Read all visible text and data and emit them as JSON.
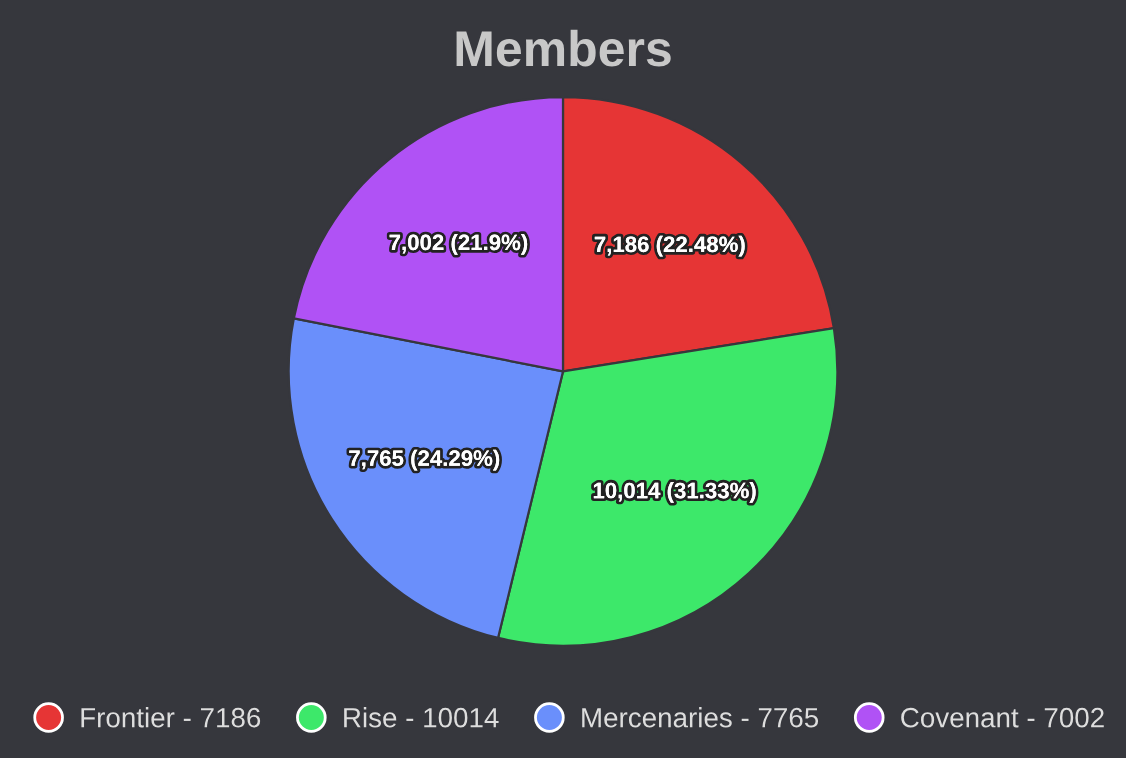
{
  "chart_data": {
    "type": "pie",
    "title": "Members",
    "categories": [
      "Frontier - 7186",
      "Rise - 10014",
      "Mercenaries - 7765",
      "Covenant - 7002"
    ],
    "values": [
      7186,
      10014,
      7765,
      7002
    ],
    "colors": [
      "#e63535",
      "#3de86a",
      "#6a8ffb",
      "#b052f5"
    ],
    "value_labels": [
      "7,186 (22.48%)",
      "10,014 (31.33%)",
      "7,765 (24.29%)",
      "7,002 (21.9%)"
    ],
    "legend": "bottom"
  }
}
